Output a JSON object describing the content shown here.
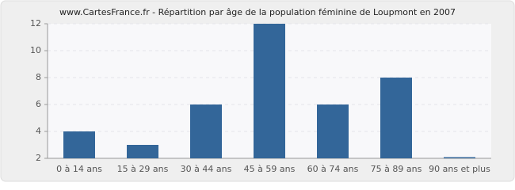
{
  "chart_data": {
    "type": "bar",
    "title": "www.CartesFrance.fr - Répartition par âge de la population féminine de Loupmont en 2007",
    "categories": [
      "0 à 14 ans",
      "15 à 29 ans",
      "30 à 44 ans",
      "45 à 59 ans",
      "60 à 74 ans",
      "75 à 89 ans",
      "90 ans et plus"
    ],
    "values": [
      4,
      3,
      6,
      12,
      6,
      8,
      2
    ],
    "color": "#336699",
    "ylim": [
      2,
      12
    ],
    "yticks": [
      2,
      4,
      6,
      8,
      10,
      12
    ],
    "grid": true
  }
}
